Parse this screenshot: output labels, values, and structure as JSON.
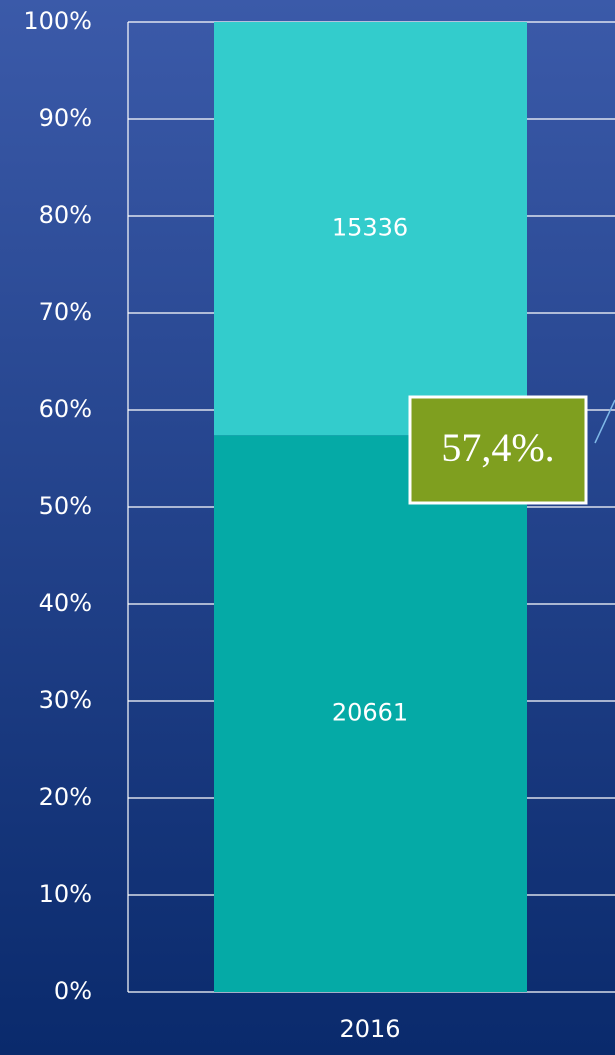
{
  "chart_data": {
    "type": "bar",
    "stacked": "percent",
    "categories": [
      "2016"
    ],
    "series": [
      {
        "color": "#05aaa6",
        "values": [
          20661
        ]
      },
      {
        "color": "#33cccc",
        "values": [
          15336
        ]
      }
    ],
    "ylim": [
      0,
      100
    ],
    "yticks": [
      {
        "value": 0,
        "label": "0%"
      },
      {
        "value": 10,
        "label": "10%"
      },
      {
        "value": 20,
        "label": "20%"
      },
      {
        "value": 30,
        "label": "30%"
      },
      {
        "value": 40,
        "label": "40%"
      },
      {
        "value": 50,
        "label": "50%"
      },
      {
        "value": 60,
        "label": "60%"
      },
      {
        "value": 70,
        "label": "70%"
      },
      {
        "value": 80,
        "label": "80%"
      },
      {
        "value": 90,
        "label": "90%"
      },
      {
        "value": 100,
        "label": "100%"
      }
    ],
    "grid": true,
    "annotation": {
      "text": "57,4%.",
      "color": "#7f9f1f"
    }
  }
}
